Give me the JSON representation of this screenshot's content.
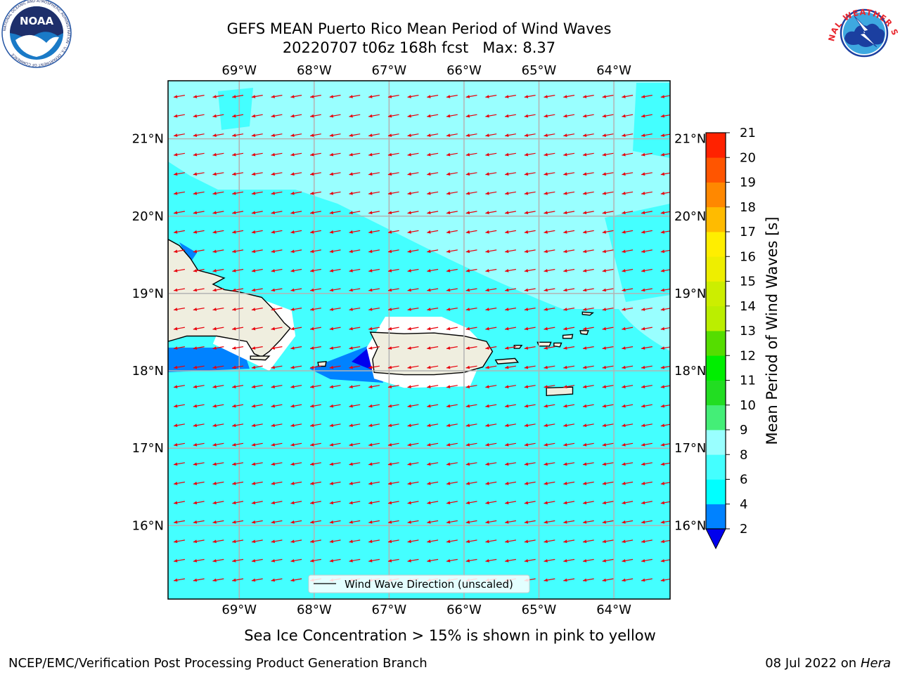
{
  "title": {
    "line1": "GEFS MEAN Puerto Rico Mean Period of Wind Waves",
    "line2": "20220707 t06z 168h fcst   Max: 8.37"
  },
  "logos": {
    "noaa": {
      "text": "NOAA",
      "ring_text": "NATIONAL OCEANIC AND ATMOSPHERIC ADMINISTRATION · U.S. DEPARTMENT OF COMMERCE",
      "colors": {
        "navy": "#1e2f6b",
        "blue": "#1a7ac7",
        "ring": "#2455a4"
      }
    },
    "nws": {
      "ring_text": "NATIONAL WEATHER SERVICE",
      "colors": {
        "red": "#e8262d",
        "blue": "#1b3fa0",
        "sky": "#3ea8e0"
      }
    }
  },
  "map": {
    "lon_range": [
      -69.95,
      -63.25
    ],
    "lat_range": [
      15.05,
      21.75
    ],
    "lon_ticks": [
      -69,
      -68,
      -67,
      -66,
      -65,
      -64
    ],
    "lat_ticks": [
      16,
      17,
      18,
      19,
      20,
      21
    ],
    "lon_labels": [
      "69°W",
      "68°W",
      "67°W",
      "66°W",
      "65°W",
      "64°W"
    ],
    "lat_labels": [
      "16°N",
      "17°N",
      "18°N",
      "19°N",
      "20°N",
      "21°N"
    ],
    "colors": {
      "land": "#efeedf",
      "coast": "#000000",
      "grid": "#b3b3b3",
      "arrow": "#e8000b",
      "missing": "#ffffff"
    },
    "arrow_grid": {
      "lon_start": -69.8,
      "lon_step": 0.26,
      "lat_start": 15.3,
      "lat_step": 0.25,
      "direction_deg": 190
    },
    "land": [
      {
        "name": "Hispaniola",
        "lonlat": [
          [
            -69.95,
            19.7
          ],
          [
            -69.8,
            19.62
          ],
          [
            -69.65,
            19.45
          ],
          [
            -69.55,
            19.3
          ],
          [
            -69.35,
            19.25
          ],
          [
            -69.2,
            19.2
          ],
          [
            -69.35,
            19.12
          ],
          [
            -69.2,
            19.05
          ],
          [
            -69.0,
            19.02
          ],
          [
            -68.7,
            18.95
          ],
          [
            -68.55,
            18.8
          ],
          [
            -68.4,
            18.62
          ],
          [
            -68.32,
            18.55
          ],
          [
            -68.45,
            18.4
          ],
          [
            -68.6,
            18.25
          ],
          [
            -68.7,
            18.18
          ],
          [
            -68.8,
            18.22
          ],
          [
            -68.9,
            18.38
          ],
          [
            -69.3,
            18.45
          ],
          [
            -69.7,
            18.45
          ],
          [
            -69.95,
            18.38
          ]
        ]
      },
      {
        "name": "Puerto Rico",
        "lonlat": [
          [
            -67.25,
            18.5
          ],
          [
            -66.8,
            18.48
          ],
          [
            -66.4,
            18.49
          ],
          [
            -66.0,
            18.45
          ],
          [
            -65.7,
            18.38
          ],
          [
            -65.62,
            18.25
          ],
          [
            -65.75,
            18.05
          ],
          [
            -66.0,
            17.98
          ],
          [
            -66.4,
            17.95
          ],
          [
            -66.8,
            17.95
          ],
          [
            -67.2,
            17.98
          ],
          [
            -67.22,
            18.15
          ],
          [
            -67.15,
            18.3
          ]
        ]
      },
      {
        "name": "Vieques",
        "lonlat": [
          [
            -65.58,
            18.14
          ],
          [
            -65.32,
            18.16
          ],
          [
            -65.28,
            18.11
          ],
          [
            -65.55,
            18.09
          ]
        ]
      },
      {
        "name": "Culebra",
        "lonlat": [
          [
            -65.33,
            18.33
          ],
          [
            -65.23,
            18.33
          ],
          [
            -65.26,
            18.29
          ],
          [
            -65.33,
            18.29
          ]
        ]
      },
      {
        "name": "St Thomas",
        "lonlat": [
          [
            -65.02,
            18.37
          ],
          [
            -64.84,
            18.37
          ],
          [
            -64.86,
            18.32
          ],
          [
            -65.0,
            18.32
          ]
        ]
      },
      {
        "name": "St John",
        "lonlat": [
          [
            -64.8,
            18.36
          ],
          [
            -64.7,
            18.36
          ],
          [
            -64.72,
            18.31
          ],
          [
            -64.8,
            18.32
          ]
        ]
      },
      {
        "name": "Tortola",
        "lonlat": [
          [
            -64.68,
            18.46
          ],
          [
            -64.55,
            18.47
          ],
          [
            -64.56,
            18.42
          ],
          [
            -64.68,
            18.42
          ]
        ]
      },
      {
        "name": "Virgin Gorda",
        "lonlat": [
          [
            -64.45,
            18.52
          ],
          [
            -64.34,
            18.52
          ],
          [
            -64.36,
            18.47
          ],
          [
            -64.44,
            18.48
          ]
        ]
      },
      {
        "name": "Anegada",
        "lonlat": [
          [
            -64.42,
            18.76
          ],
          [
            -64.28,
            18.75
          ],
          [
            -64.32,
            18.72
          ],
          [
            -64.42,
            18.73
          ]
        ]
      },
      {
        "name": "St Croix",
        "lonlat": [
          [
            -64.9,
            17.78
          ],
          [
            -64.55,
            17.79
          ],
          [
            -64.55,
            17.7
          ],
          [
            -64.9,
            17.68
          ]
        ]
      },
      {
        "name": "Mona",
        "lonlat": [
          [
            -67.95,
            18.11
          ],
          [
            -67.84,
            18.12
          ],
          [
            -67.85,
            18.06
          ],
          [
            -67.94,
            18.06
          ]
        ]
      },
      {
        "name": "Saona",
        "lonlat": [
          [
            -68.85,
            18.19
          ],
          [
            -68.6,
            18.19
          ],
          [
            -68.65,
            18.14
          ],
          [
            -68.85,
            18.15
          ]
        ]
      }
    ],
    "missing": [
      {
        "lonlat": [
          [
            -69.05,
            19.05
          ],
          [
            -68.3,
            18.78
          ],
          [
            -68.25,
            18.45
          ],
          [
            -68.6,
            18.0
          ],
          [
            -69.35,
            18.35
          ]
        ]
      },
      {
        "lonlat": [
          [
            -67.05,
            18.7
          ],
          [
            -66.3,
            18.7
          ],
          [
            -65.95,
            18.55
          ],
          [
            -65.7,
            18.3
          ],
          [
            -65.92,
            17.8
          ],
          [
            -66.8,
            17.78
          ],
          [
            -67.2,
            17.9
          ],
          [
            -67.3,
            18.3
          ]
        ]
      }
    ]
  },
  "legend": {
    "label": "Wind Wave Direction (unscaled)"
  },
  "colorbar": {
    "label": "Mean Period of Wind Waves [s]",
    "ticks": [
      2,
      4,
      6,
      8,
      9,
      10,
      11,
      12,
      13,
      14,
      15,
      16,
      17,
      18,
      19,
      20,
      21
    ],
    "tick_labels": [
      "2",
      "4",
      "6",
      "8",
      "9",
      "10",
      "11",
      "12",
      "13",
      "14",
      "15",
      "16",
      "17",
      "18",
      "19",
      "20",
      "21"
    ],
    "colors": [
      "#0082ff",
      "#00ffff",
      "#44ffff",
      "#99ffff",
      "#44ee77",
      "#22dd22",
      "#00ee00",
      "#55dd00",
      "#bbee00",
      "#ccee00",
      "#eeee00",
      "#ffee00",
      "#ffbb00",
      "#ff8800",
      "#ff5500",
      "#ff2200"
    ],
    "extend_color": "#0000ee"
  },
  "footer": {
    "ice_note": "Sea Ice Concentration > 15% is shown in pink to yellow",
    "left": "NCEP/EMC/Verification Post Processing Product Generation Branch",
    "right_prefix": "08 Jul 2022 on ",
    "right_host": "Hera"
  }
}
